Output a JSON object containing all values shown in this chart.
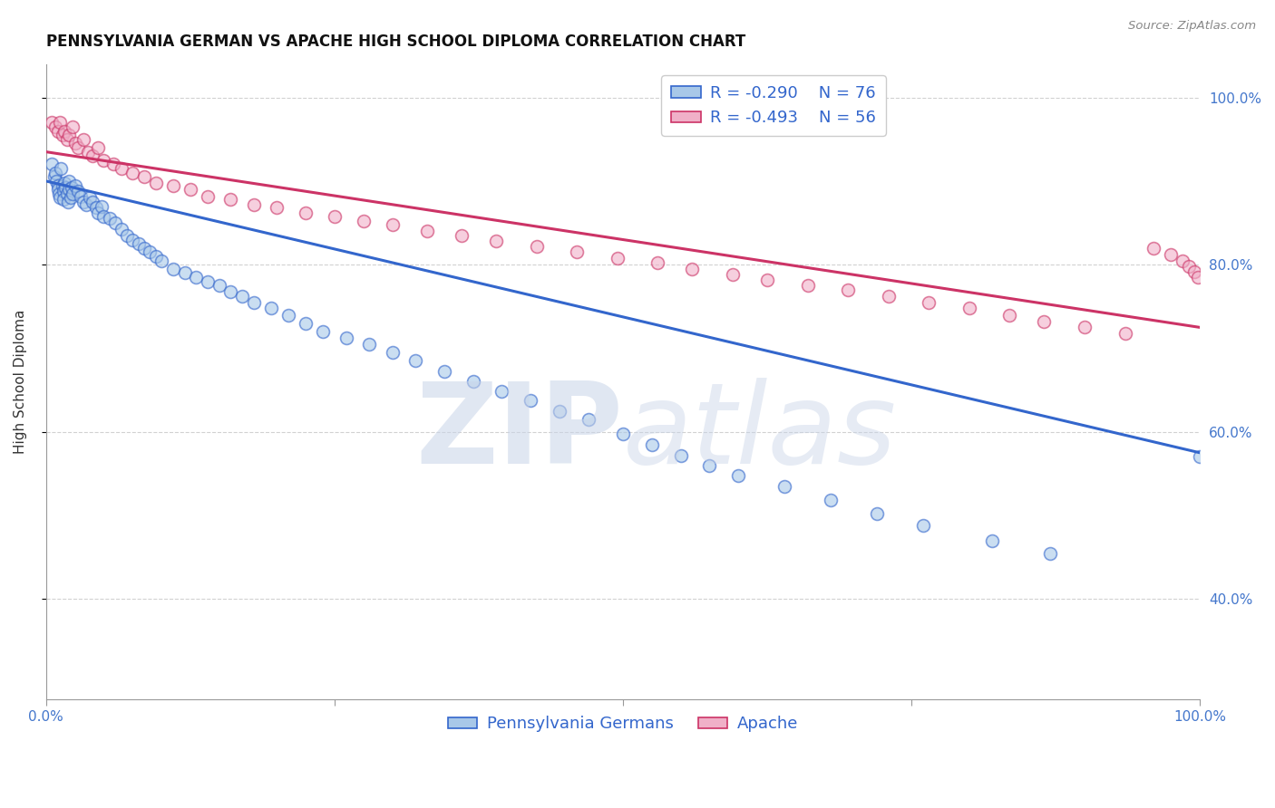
{
  "title": "PENNSYLVANIA GERMAN VS APACHE HIGH SCHOOL DIPLOMA CORRELATION CHART",
  "source_text": "Source: ZipAtlas.com",
  "watermark_zip": "ZIP",
  "watermark_atlas": "atlas",
  "ylabel": "High School Diploma",
  "xlim": [
    0.0,
    1.0
  ],
  "ylim": [
    0.28,
    1.04
  ],
  "ytick_positions": [
    0.4,
    0.6,
    0.8,
    1.0
  ],
  "ytick_labels": [
    "40.0%",
    "60.0%",
    "80.0%",
    "100.0%"
  ],
  "blue_color": "#a8c8e8",
  "pink_color": "#f0b0c8",
  "blue_line_color": "#3366cc",
  "pink_line_color": "#cc3366",
  "legend_label_blue": "Pennsylvania Germans",
  "legend_label_pink": "Apache",
  "blue_trend_x": [
    0.0,
    1.0
  ],
  "blue_trend_y": [
    0.9,
    0.575
  ],
  "pink_trend_x": [
    0.0,
    1.0
  ],
  "pink_trend_y": [
    0.935,
    0.725
  ],
  "blue_scatter_x": [
    0.005,
    0.007,
    0.008,
    0.009,
    0.01,
    0.01,
    0.011,
    0.012,
    0.013,
    0.014,
    0.015,
    0.015,
    0.016,
    0.017,
    0.018,
    0.019,
    0.02,
    0.02,
    0.021,
    0.022,
    0.023,
    0.025,
    0.028,
    0.03,
    0.032,
    0.035,
    0.038,
    0.04,
    0.043,
    0.045,
    0.048,
    0.05,
    0.055,
    0.06,
    0.065,
    0.07,
    0.075,
    0.08,
    0.085,
    0.09,
    0.095,
    0.1,
    0.11,
    0.12,
    0.13,
    0.14,
    0.15,
    0.16,
    0.17,
    0.18,
    0.195,
    0.21,
    0.225,
    0.24,
    0.26,
    0.28,
    0.3,
    0.32,
    0.345,
    0.37,
    0.395,
    0.42,
    0.445,
    0.47,
    0.5,
    0.525,
    0.55,
    0.575,
    0.6,
    0.64,
    0.68,
    0.72,
    0.76,
    0.82,
    0.87,
    1.0
  ],
  "blue_scatter_y": [
    0.92,
    0.905,
    0.91,
    0.9,
    0.895,
    0.89,
    0.885,
    0.88,
    0.915,
    0.895,
    0.888,
    0.878,
    0.898,
    0.892,
    0.885,
    0.875,
    0.9,
    0.89,
    0.88,
    0.892,
    0.885,
    0.895,
    0.888,
    0.882,
    0.875,
    0.872,
    0.88,
    0.875,
    0.868,
    0.862,
    0.87,
    0.858,
    0.855,
    0.85,
    0.842,
    0.835,
    0.83,
    0.825,
    0.82,
    0.815,
    0.81,
    0.805,
    0.795,
    0.79,
    0.785,
    0.78,
    0.775,
    0.768,
    0.762,
    0.755,
    0.748,
    0.74,
    0.73,
    0.72,
    0.712,
    0.705,
    0.695,
    0.685,
    0.672,
    0.66,
    0.648,
    0.638,
    0.625,
    0.615,
    0.598,
    0.585,
    0.572,
    0.56,
    0.548,
    0.535,
    0.518,
    0.502,
    0.488,
    0.47,
    0.455,
    0.57
  ],
  "pink_scatter_x": [
    0.005,
    0.008,
    0.01,
    0.012,
    0.014,
    0.016,
    0.018,
    0.02,
    0.023,
    0.025,
    0.028,
    0.032,
    0.036,
    0.04,
    0.045,
    0.05,
    0.058,
    0.065,
    0.075,
    0.085,
    0.095,
    0.11,
    0.125,
    0.14,
    0.16,
    0.18,
    0.2,
    0.225,
    0.25,
    0.275,
    0.3,
    0.33,
    0.36,
    0.39,
    0.425,
    0.46,
    0.495,
    0.53,
    0.56,
    0.595,
    0.625,
    0.66,
    0.695,
    0.73,
    0.765,
    0.8,
    0.835,
    0.865,
    0.9,
    0.935,
    0.96,
    0.975,
    0.985,
    0.99,
    0.995,
    0.998
  ],
  "pink_scatter_y": [
    0.97,
    0.965,
    0.96,
    0.97,
    0.955,
    0.96,
    0.95,
    0.955,
    0.965,
    0.945,
    0.94,
    0.95,
    0.935,
    0.93,
    0.94,
    0.925,
    0.92,
    0.915,
    0.91,
    0.905,
    0.898,
    0.895,
    0.89,
    0.882,
    0.878,
    0.872,
    0.868,
    0.862,
    0.858,
    0.852,
    0.848,
    0.84,
    0.835,
    0.828,
    0.822,
    0.815,
    0.808,
    0.802,
    0.795,
    0.788,
    0.782,
    0.775,
    0.77,
    0.762,
    0.755,
    0.748,
    0.74,
    0.732,
    0.725,
    0.718,
    0.82,
    0.812,
    0.805,
    0.798,
    0.792,
    0.785
  ],
  "grid_color": "#cccccc",
  "background_color": "#ffffff",
  "title_fontsize": 12,
  "axis_label_fontsize": 11,
  "tick_fontsize": 11,
  "legend_fontsize": 13,
  "marker_size": 100,
  "marker_lw": 1.2,
  "marker_alpha": 0.6
}
